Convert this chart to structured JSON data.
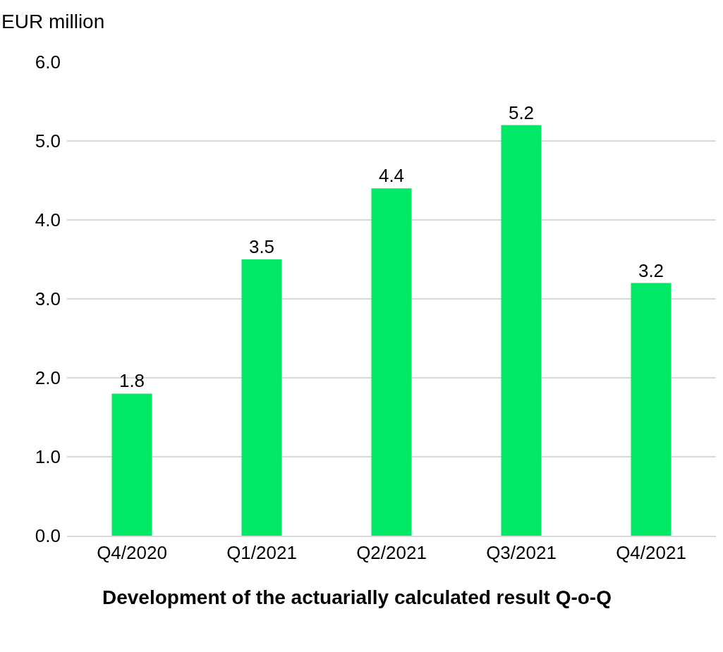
{
  "chart_data": {
    "type": "bar",
    "title": "Development of the actuarially calculated result Q-o-Q",
    "ylabel": "EUR million",
    "categories": [
      "Q4/2020",
      "Q1/2021",
      "Q2/2021",
      "Q3/2021",
      "Q4/2021"
    ],
    "values": [
      1.8,
      3.5,
      4.4,
      5.2,
      3.2
    ],
    "color": "#00e865",
    "ylim": [
      0,
      6
    ],
    "yticks": [
      {
        "value": 0,
        "label": "0.0"
      },
      {
        "value": 1,
        "label": "1.0"
      },
      {
        "value": 2,
        "label": "2.0"
      },
      {
        "value": 3,
        "label": "3.0"
      },
      {
        "value": 4,
        "label": "4.0"
      },
      {
        "value": 5,
        "label": "5.0"
      },
      {
        "value": 6,
        "label": "6.0"
      }
    ],
    "grid": "y",
    "data_labels": true
  }
}
